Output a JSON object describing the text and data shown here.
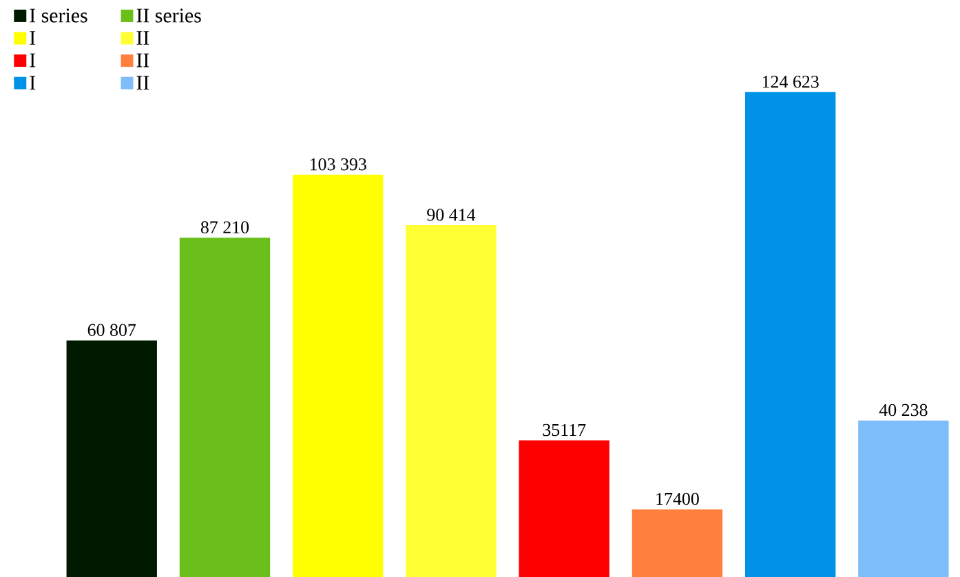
{
  "chart_data": {
    "type": "bar",
    "categories": [
      null,
      null,
      null,
      null,
      null,
      null,
      null,
      null
    ],
    "series": [
      {
        "name": "I series",
        "color": "#001a00",
        "values": [
          60807,
          null,
          null,
          null,
          null,
          null,
          null,
          null
        ],
        "value_labels": [
          "60 807",
          null,
          null,
          null,
          null,
          null,
          null,
          null
        ]
      },
      {
        "name": "II series",
        "color": "#6abf1a",
        "values": [
          null,
          87210,
          null,
          null,
          null,
          null,
          null,
          null
        ],
        "value_labels": [
          null,
          "87 210",
          null,
          null,
          null,
          null,
          null,
          null
        ]
      },
      {
        "name": "I",
        "color": "#ffff00",
        "values": [
          null,
          null,
          103393,
          null,
          null,
          null,
          null,
          null
        ],
        "value_labels": [
          null,
          null,
          "103 393",
          null,
          null,
          null,
          null,
          null
        ]
      },
      {
        "name": "II",
        "color": "#ffff33",
        "values": [
          null,
          null,
          null,
          90414,
          null,
          null,
          null,
          null
        ],
        "value_labels": [
          null,
          null,
          null,
          "90 414",
          null,
          null,
          null,
          null
        ]
      },
      {
        "name": "I",
        "color": "#ff0000",
        "values": [
          null,
          null,
          null,
          null,
          35117,
          null,
          null,
          null
        ],
        "value_labels": [
          null,
          null,
          null,
          null,
          "35117",
          null,
          null,
          null
        ]
      },
      {
        "name": "II",
        "color": "#ff7f3f",
        "values": [
          null,
          null,
          null,
          null,
          null,
          17400,
          null,
          null
        ],
        "value_labels": [
          null,
          null,
          null,
          null,
          null,
          "17400",
          null,
          null
        ]
      },
      {
        "name": "I",
        "color": "#0092e6",
        "values": [
          null,
          null,
          null,
          null,
          null,
          null,
          124623,
          null
        ],
        "value_labels": [
          null,
          null,
          null,
          null,
          null,
          null,
          "124 623",
          null
        ]
      },
      {
        "name": "II",
        "color": "#7dbdfa",
        "values": [
          null,
          null,
          null,
          null,
          null,
          null,
          null,
          40238
        ],
        "value_labels": [
          null,
          null,
          null,
          null,
          null,
          null,
          null,
          "40 238"
        ]
      }
    ],
    "stacked": true,
    "legend": "top left",
    "tick_labels": false
  }
}
